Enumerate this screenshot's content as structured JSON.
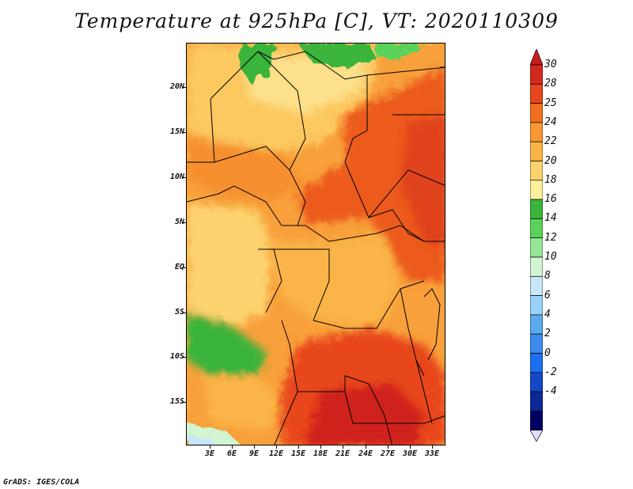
{
  "title": "Temperature at 925hPa [C], VT: 2020110309",
  "credit": "GrADS: IGES/COLA",
  "y_axis_labels": [
    "20N",
    "15N",
    "10N",
    "5N",
    "EQ",
    "5S",
    "10S",
    "15S"
  ],
  "x_axis_labels": [
    "3E",
    "6E",
    "9E",
    "12E",
    "15E",
    "18E",
    "21E",
    "24E",
    "27E",
    "30E",
    "33E"
  ],
  "colorbar": {
    "labels": [
      "30",
      "28",
      "25",
      "24",
      "22",
      "20",
      "18",
      "16",
      "14",
      "12",
      "10",
      "8",
      "6",
      "4",
      "2",
      "0",
      "-2",
      "-4"
    ],
    "colors": [
      "#d2281e",
      "#e8461e",
      "#f06e1e",
      "#f89632",
      "#fab446",
      "#fcd26e",
      "#fff09c",
      "#3ab43a",
      "#5ad25a",
      "#96e696",
      "#d0f5d0",
      "#c8e6fa",
      "#96d2fa",
      "#5aaaf0",
      "#3c8cf0",
      "#1e6ef0",
      "#1448c8",
      "#0a2896",
      "#000064"
    ],
    "arrow_colors": {
      "top": "#c81e1e",
      "bottom": "#ddddff"
    }
  },
  "palette": {
    "warm_red": "#d2281e",
    "orange": "#f06e1e",
    "yellow": "#fcd26e",
    "green": "#3ab43a",
    "light": "#fff09c"
  }
}
